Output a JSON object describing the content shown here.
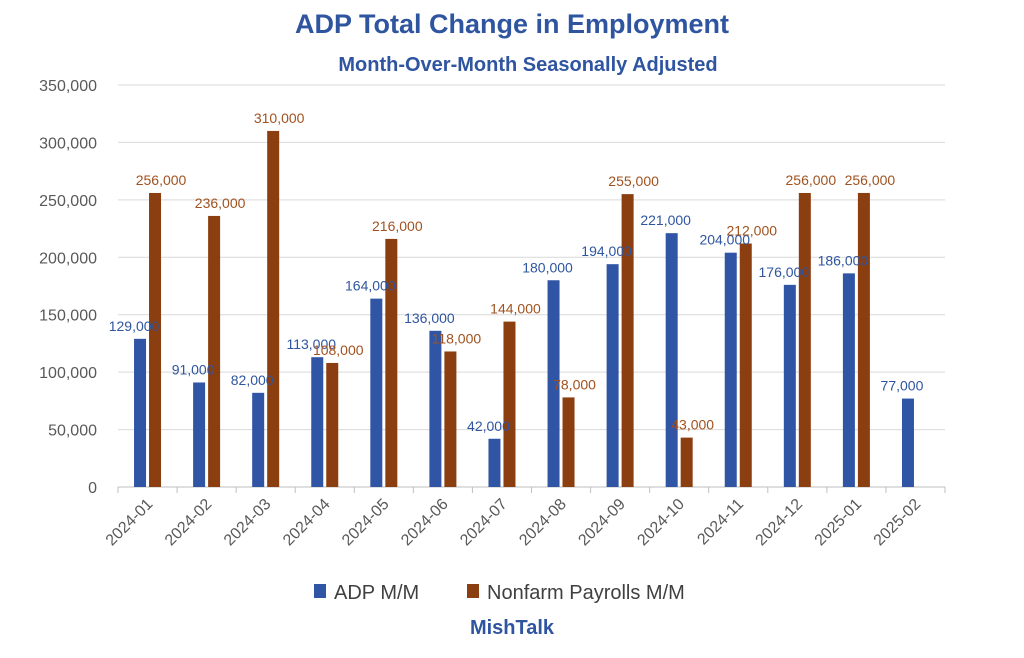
{
  "chart_data": {
    "type": "bar",
    "title": "ADP Total Change in Employment",
    "subtitle": "Month-Over-Month Seasonally Adjusted",
    "xlabel": "",
    "ylabel": "",
    "ylim": [
      0,
      350000
    ],
    "yticks": [
      0,
      50000,
      100000,
      150000,
      200000,
      250000,
      300000,
      350000
    ],
    "ytick_labels": [
      "0",
      "50,000",
      "100,000",
      "150,000",
      "200,000",
      "250,000",
      "300,000",
      "350,000"
    ],
    "grid": true,
    "legend": "bottom",
    "categories": [
      "2024-01",
      "2024-02",
      "2024-03",
      "2024-04",
      "2024-05",
      "2024-06",
      "2024-07",
      "2024-08",
      "2024-09",
      "2024-10",
      "2024-11",
      "2024-12",
      "2025-01",
      "2025-02"
    ],
    "series": [
      {
        "name": "ADP M/M",
        "color": "#2f55a4",
        "label_color": "#2f55a0",
        "values": [
          129000,
          91000,
          82000,
          113000,
          164000,
          136000,
          42000,
          180000,
          194000,
          221000,
          204000,
          176000,
          186000,
          77000
        ],
        "labels": [
          "129,000",
          "91,000",
          "82,000",
          "113,000",
          "164,000",
          "136,000",
          "42,000",
          "180,000",
          "194,000",
          "221,000",
          "204,000",
          "176,000",
          "186,000",
          "77,000"
        ]
      },
      {
        "name": "Nonfarm Payrolls M/M",
        "color": "#8b3e0f",
        "label_color": "#a0521f",
        "values": [
          256000,
          236000,
          310000,
          108000,
          216000,
          118000,
          144000,
          78000,
          255000,
          43000,
          212000,
          256000,
          256000,
          null
        ],
        "labels": [
          "256,000",
          "236,000",
          "310,000",
          "108,000",
          "216,000",
          "118,000",
          "144,000",
          "78,000",
          "255,000",
          "43,000",
          "212,000",
          "256,000",
          "256,000",
          null
        ]
      }
    ]
  },
  "watermark": "MishTalk"
}
